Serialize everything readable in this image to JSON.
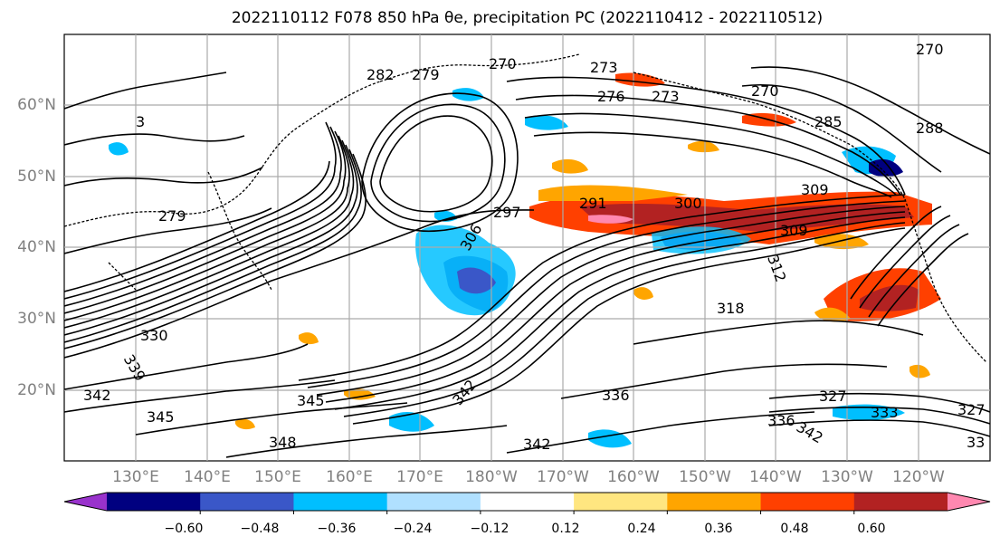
{
  "title": "2022110112 F078 850 hPa θe, precipitation PC (2022110412 - 2022110512)",
  "lat_labels": [
    "60°N",
    "50°N",
    "40°N",
    "30°N",
    "20°N"
  ],
  "lon_labels": [
    "130°E",
    "140°E",
    "150°E",
    "160°E",
    "170°E",
    "180°W",
    "170°W",
    "160°W",
    "150°W",
    "140°W",
    "130°W",
    "120°W"
  ],
  "colorbar": {
    "tick_labels": [
      "−0.60",
      "−0.48",
      "−0.36",
      "−0.24",
      "−0.12",
      "0.12",
      "0.24",
      "0.36",
      "0.48",
      "0.60"
    ],
    "colors": [
      "#9932cc",
      "#000080",
      "#3a57c8",
      "#00bfff",
      "#b0e0ff",
      "#ffffff",
      "#ffe680",
      "#ffa500",
      "#ff4000",
      "#b22222",
      "#ff88b0"
    ]
  },
  "contour_labels": [
    "270",
    "282",
    "279",
    "270",
    "273",
    "276",
    "270",
    "273",
    "285",
    "288",
    "3",
    "279",
    "291",
    "300",
    "309",
    "297",
    "306",
    "309",
    "312",
    "318",
    "330",
    "339",
    "342",
    "345",
    "345",
    "348",
    "342",
    "336",
    "342",
    "336",
    "342",
    "327",
    "333",
    "327",
    "33"
  ]
}
